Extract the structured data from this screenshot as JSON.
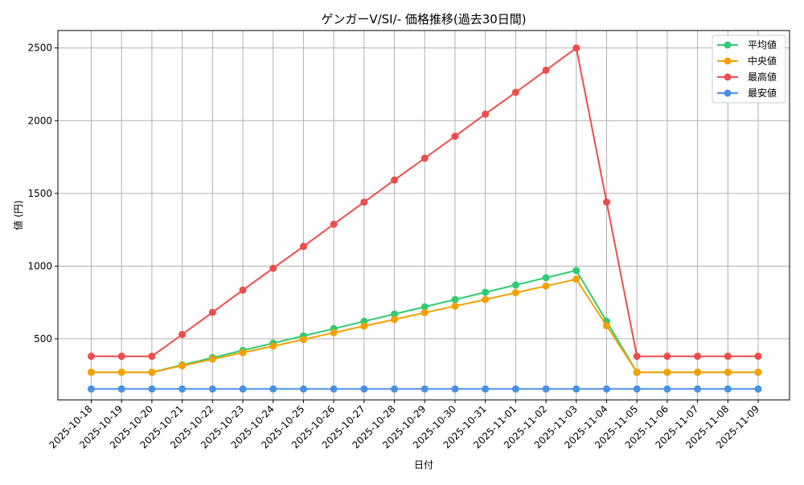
{
  "chart_data": {
    "type": "line",
    "title": "ゲンガーV/SI/- 価格推移(過去30日間)",
    "xlabel": "日付",
    "ylabel": "値 (円)",
    "categories": [
      "2025-10-18",
      "2025-10-19",
      "2025-10-20",
      "2025-10-21",
      "2025-10-22",
      "2025-10-23",
      "2025-10-24",
      "2025-10-25",
      "2025-10-26",
      "2025-10-27",
      "2025-10-28",
      "2025-10-29",
      "2025-10-30",
      "2025-10-31",
      "2025-11-01",
      "2025-11-02",
      "2025-11-03",
      "2025-11-04",
      "2025-11-05",
      "2025-11-06",
      "2025-11-07",
      "2025-11-08",
      "2025-11-09"
    ],
    "ylim": [
      80,
      2620
    ],
    "yticks": [
      500,
      1000,
      1500,
      2000,
      2500
    ],
    "grid": true,
    "legend_position": "top-right",
    "series": [
      {
        "name": "平均値",
        "color": "#2ecc71",
        "values": [
          270,
          270,
          270,
          320,
          370,
          420,
          470,
          520,
          570,
          620,
          670,
          720,
          770,
          820,
          870,
          920,
          970,
          620,
          270,
          270,
          270,
          270,
          270
        ]
      },
      {
        "name": "中央値",
        "color": "#f5a000",
        "values": [
          270,
          270,
          270,
          315,
          360,
          405,
          450,
          495,
          542,
          588,
          633,
          680,
          725,
          770,
          817,
          863,
          910,
          590,
          270,
          270,
          270,
          270,
          270
        ]
      },
      {
        "name": "最高値",
        "color": "#ef4c4c",
        "values": [
          380,
          380,
          380,
          530,
          682,
          835,
          985,
          1135,
          1288,
          1440,
          1592,
          1742,
          1893,
          2045,
          2195,
          2347,
          2500,
          1440,
          380,
          380,
          380,
          380,
          380
        ]
      },
      {
        "name": "最安値",
        "color": "#4a90e2",
        "values": [
          155,
          155,
          155,
          155,
          155,
          155,
          155,
          155,
          155,
          155,
          155,
          155,
          155,
          155,
          155,
          155,
          155,
          155,
          155,
          155,
          155,
          155,
          155
        ]
      }
    ]
  }
}
